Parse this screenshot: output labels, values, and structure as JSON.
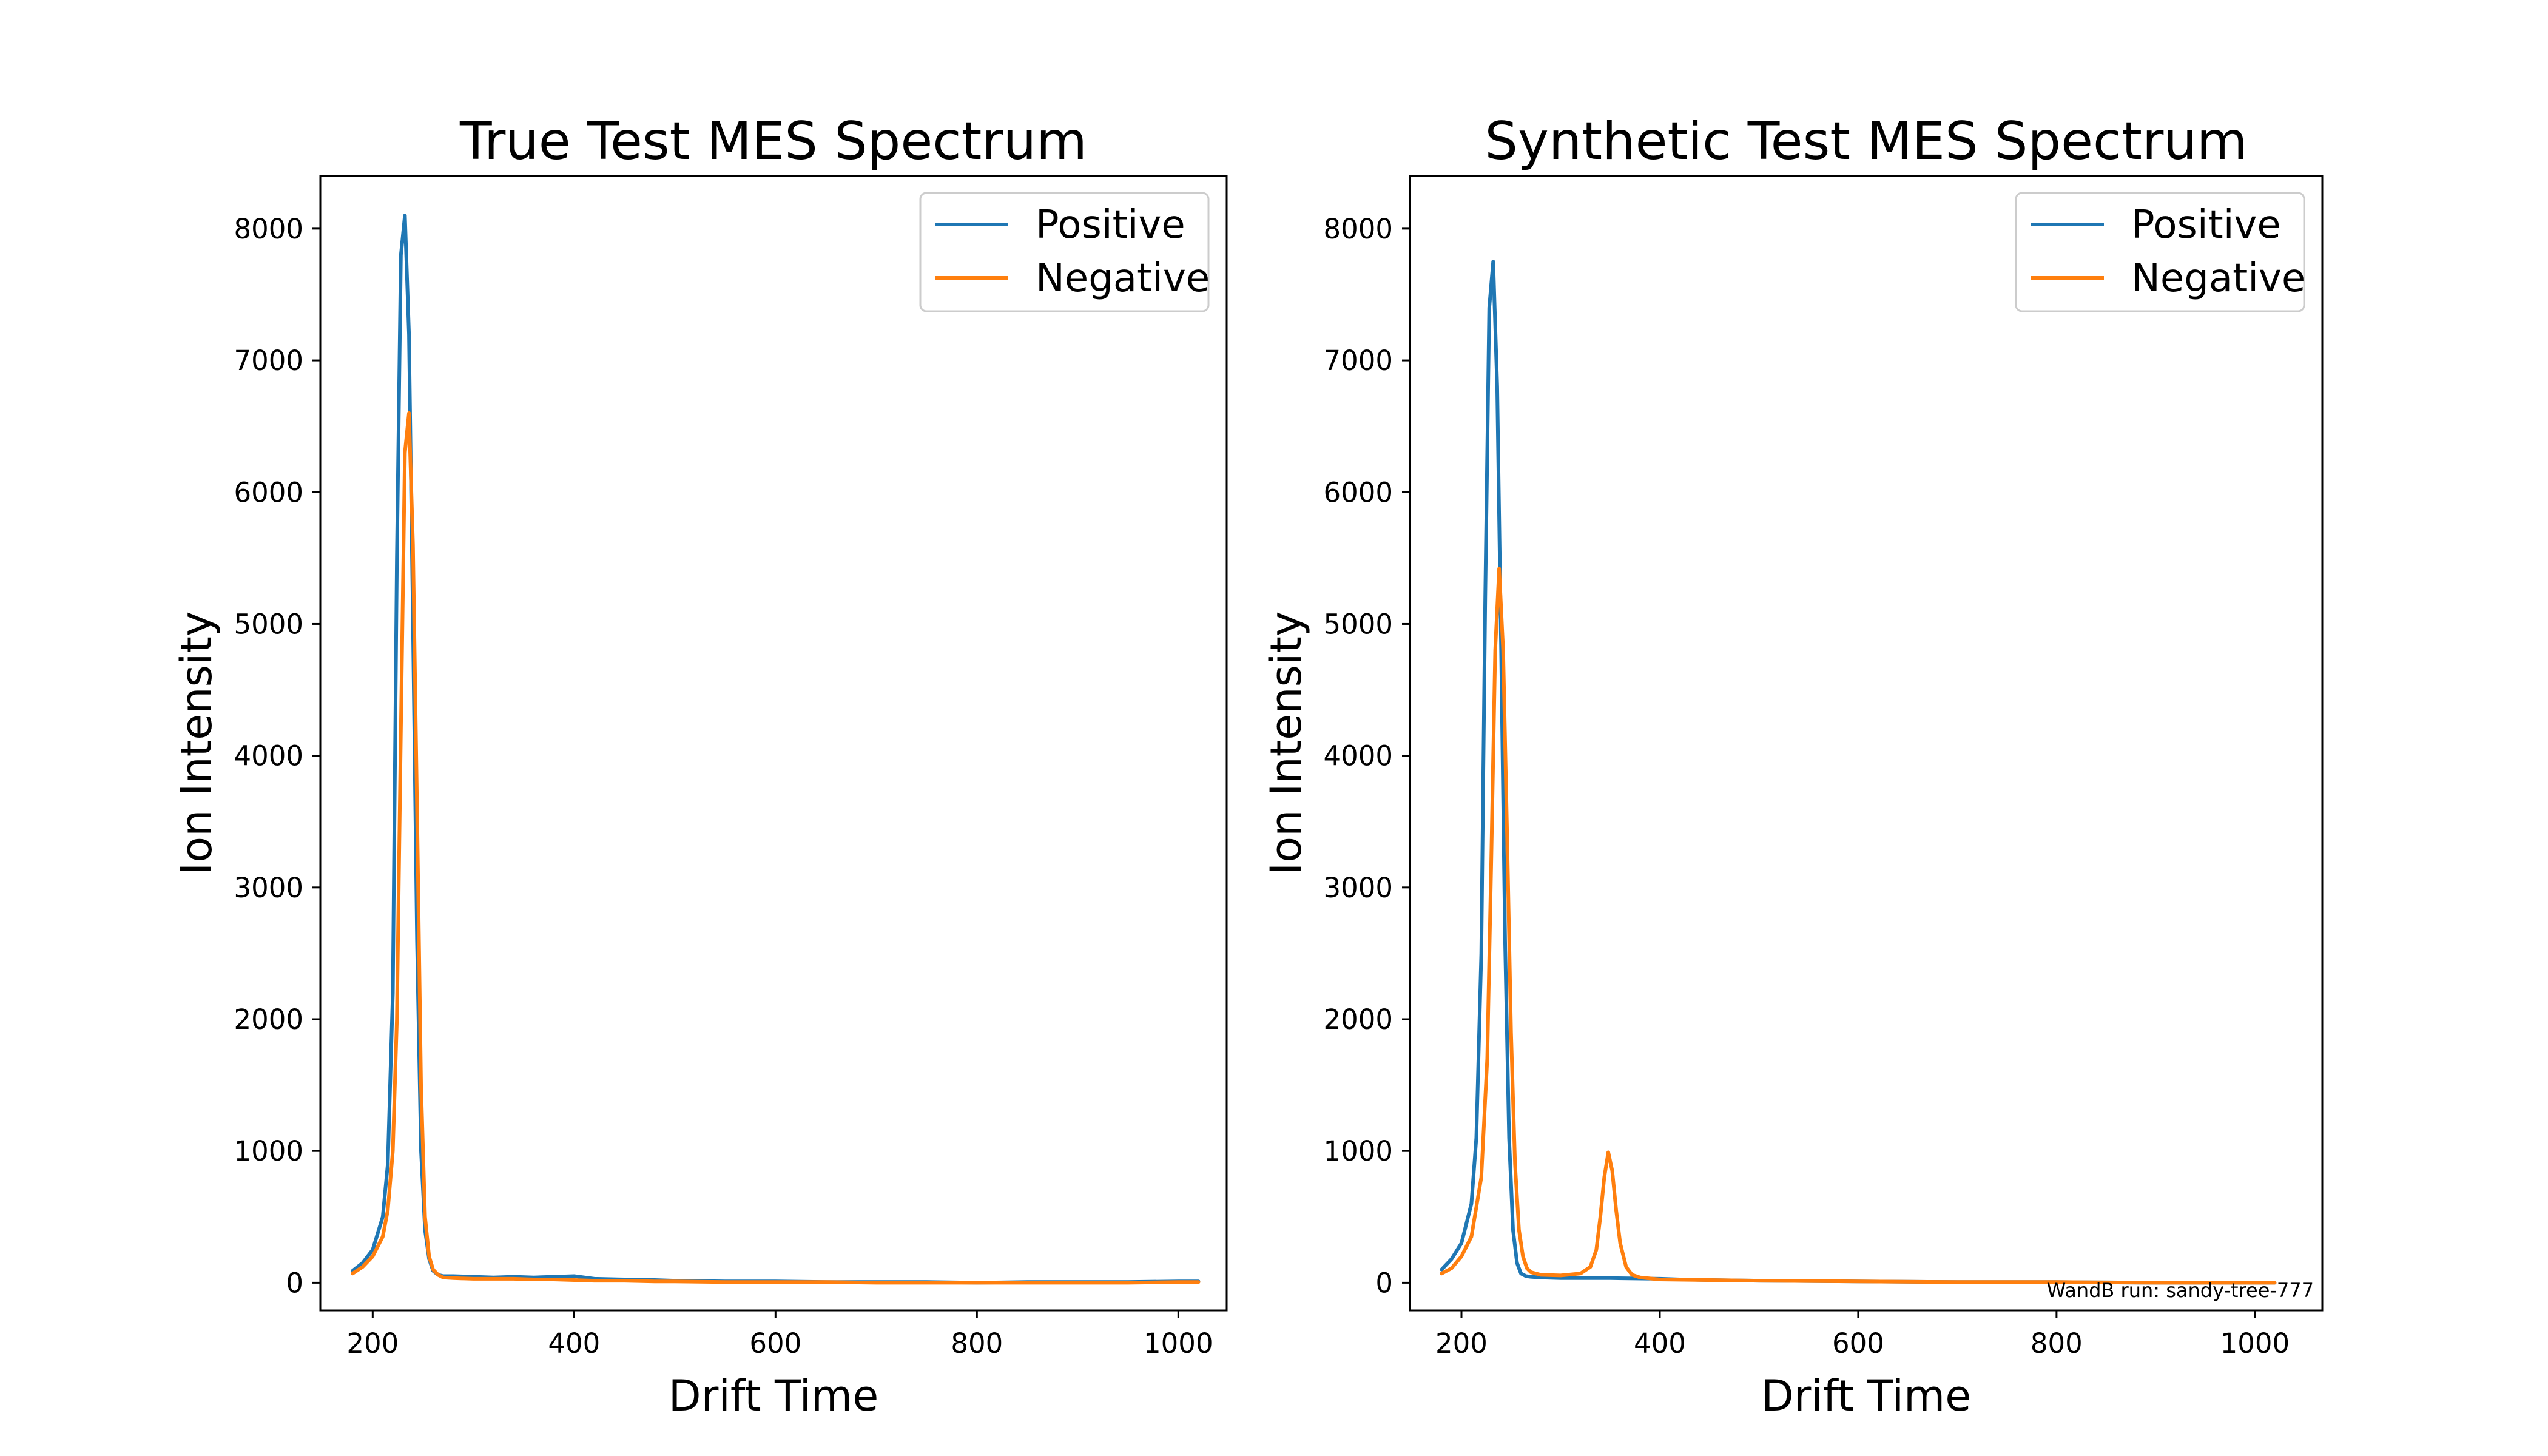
{
  "chart_data": [
    {
      "type": "line",
      "title": "True Test MES Spectrum",
      "xlabel": "Drift Time",
      "ylabel": "Ion Intensity",
      "xlim": [
        148,
        1048
      ],
      "ylim": [
        -210,
        8400
      ],
      "xticks": [
        200,
        400,
        600,
        800,
        1000
      ],
      "yticks": [
        0,
        1000,
        2000,
        3000,
        4000,
        5000,
        6000,
        7000,
        8000
      ],
      "grid": false,
      "legend": "top-right",
      "series": [
        {
          "name": "Positive",
          "color": "#1f77b4",
          "x": [
            180,
            190,
            200,
            210,
            215,
            220,
            224,
            228,
            232,
            236,
            240,
            244,
            248,
            252,
            256,
            260,
            265,
            270,
            280,
            300,
            320,
            340,
            360,
            380,
            400,
            420,
            450,
            480,
            500,
            550,
            600,
            650,
            700,
            750,
            800,
            850,
            900,
            950,
            1000,
            1020
          ],
          "y": [
            90,
            150,
            250,
            500,
            900,
            2200,
            5500,
            7800,
            8100,
            7200,
            5000,
            2600,
            1000,
            400,
            180,
            90,
            60,
            50,
            50,
            45,
            40,
            45,
            40,
            45,
            50,
            30,
            25,
            20,
            15,
            10,
            10,
            5,
            5,
            5,
            0,
            5,
            5,
            5,
            10,
            10
          ]
        },
        {
          "name": "Negative",
          "color": "#ff7f0e",
          "x": [
            180,
            190,
            200,
            210,
            215,
            220,
            224,
            228,
            232,
            236,
            240,
            244,
            248,
            252,
            256,
            260,
            265,
            270,
            280,
            300,
            320,
            340,
            360,
            380,
            400,
            420,
            450,
            480,
            500,
            550,
            600,
            650,
            700,
            750,
            800,
            850,
            900,
            950,
            1000,
            1020
          ],
          "y": [
            70,
            120,
            200,
            350,
            550,
            1000,
            2000,
            4200,
            6300,
            6600,
            5600,
            3600,
            1500,
            500,
            200,
            100,
            60,
            40,
            35,
            30,
            30,
            30,
            25,
            25,
            20,
            15,
            15,
            10,
            10,
            5,
            5,
            5,
            0,
            0,
            0,
            0,
            0,
            0,
            5,
            5
          ]
        }
      ]
    },
    {
      "type": "line",
      "title": "Synthetic Test MES Spectrum",
      "xlabel": "Drift Time",
      "ylabel": "Ion Intensity",
      "xlim": [
        148,
        1068
      ],
      "ylim": [
        -210,
        8400
      ],
      "xticks": [
        200,
        400,
        600,
        800,
        1000
      ],
      "yticks": [
        0,
        1000,
        2000,
        3000,
        4000,
        5000,
        6000,
        7000,
        8000
      ],
      "grid": false,
      "legend": "top-right",
      "annotation": "WandB run: sandy-tree-777",
      "series": [
        {
          "name": "Positive",
          "color": "#1f77b4",
          "x": [
            180,
            190,
            200,
            210,
            215,
            220,
            224,
            228,
            232,
            236,
            240,
            244,
            248,
            252,
            256,
            260,
            265,
            270,
            280,
            300,
            350,
            400,
            420,
            450,
            500,
            600,
            700,
            800,
            900,
            1000,
            1020
          ],
          "y": [
            100,
            180,
            300,
            600,
            1100,
            2500,
            5200,
            7400,
            7750,
            6800,
            4800,
            2600,
            1100,
            400,
            150,
            70,
            50,
            45,
            40,
            35,
            35,
            30,
            25,
            20,
            15,
            10,
            5,
            5,
            0,
            0,
            0
          ]
        },
        {
          "name": "Negative",
          "color": "#ff7f0e",
          "x": [
            180,
            190,
            200,
            210,
            220,
            226,
            230,
            234,
            238,
            242,
            246,
            250,
            254,
            258,
            262,
            266,
            270,
            280,
            300,
            320,
            330,
            336,
            340,
            344,
            348,
            352,
            356,
            360,
            366,
            372,
            380,
            400,
            450,
            500,
            600,
            700,
            800,
            900,
            1000,
            1020
          ],
          "y": [
            70,
            110,
            200,
            350,
            800,
            1700,
            3200,
            4800,
            5420,
            4800,
            3400,
            1900,
            900,
            400,
            200,
            110,
            80,
            60,
            55,
            70,
            120,
            250,
            500,
            800,
            990,
            850,
            550,
            300,
            120,
            60,
            40,
            25,
            20,
            15,
            10,
            5,
            5,
            0,
            0,
            0
          ]
        }
      ]
    }
  ]
}
